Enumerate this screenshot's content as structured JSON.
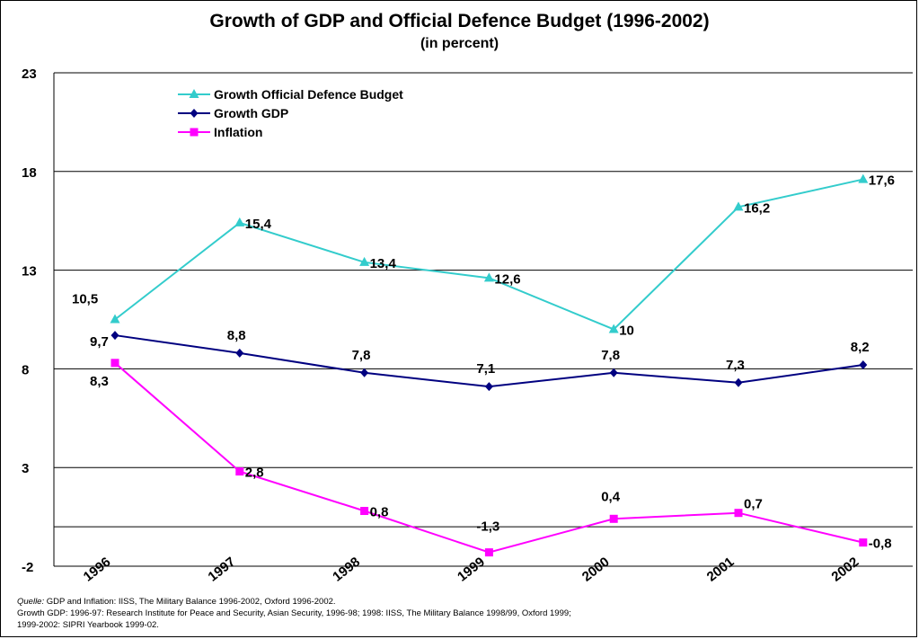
{
  "chart_data": {
    "type": "line",
    "title": "Growth of GDP and Official Defence Budget (1996-2002)",
    "subtitle": "(in percent)",
    "categories": [
      "1996",
      "1997",
      "1998",
      "1999",
      "2000",
      "2001",
      "2002"
    ],
    "ylim": [
      -2,
      23
    ],
    "yticks": [
      "-2",
      "3",
      "8",
      "13",
      "18",
      "23"
    ],
    "legend_position": "top-left",
    "grid": true,
    "series": [
      {
        "name": "Growth Official Defence Budget",
        "color": "#33CCCC",
        "marker": "triangle",
        "values": [
          10.5,
          15.4,
          13.4,
          12.6,
          10,
          16.2,
          17.6
        ],
        "labels": [
          "10,5",
          "15,4",
          "13,4",
          "12,6",
          "10",
          "16,2",
          "17,6"
        ]
      },
      {
        "name": "Growth GDP",
        "color": "#000080",
        "marker": "diamond",
        "values": [
          9.7,
          8.8,
          7.8,
          7.1,
          7.8,
          7.3,
          8.2
        ],
        "labels": [
          "9,7",
          "8,8",
          "7,8",
          "7,1",
          "7,8",
          "7,3",
          "8,2"
        ]
      },
      {
        "name": "Inflation",
        "color": "#FF00FF",
        "marker": "square",
        "values": [
          8.3,
          2.8,
          0.8,
          -1.3,
          0.4,
          0.7,
          -0.8
        ],
        "labels": [
          "8,3",
          "2,8",
          "0,8",
          "-1,3",
          "0,4",
          "0,7",
          "-0,8"
        ]
      }
    ]
  },
  "source": {
    "label": "Quelle:",
    "line1": " GDP and Inflation: IISS, The Military Balance 1996-2002, Oxford 1996-2002.",
    "line2": "Growth GDP: 1996-97: Research Institute for Peace and Security, Asian Security, 1996-98; 1998: IISS, The Military Balance 1998/99, Oxford 1999;",
    "line3": "1999-2002: SIPRI Yearbook 1999-02."
  }
}
